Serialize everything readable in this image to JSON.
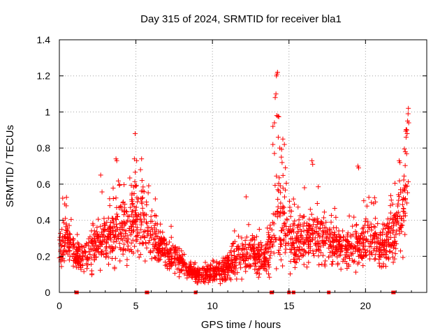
{
  "chart_data": {
    "type": "scatter",
    "title": "Day 315 of 2024, SRMTID for receiver bla1",
    "xlabel": "GPS time / hours",
    "ylabel": "SRMTID / TECUs",
    "xlim": [
      0,
      24
    ],
    "ylim": [
      0,
      1.4
    ],
    "x_ticks": [
      0,
      5,
      10,
      15,
      20
    ],
    "x_tick_labels": [
      "0",
      "5",
      "10",
      "15",
      "20"
    ],
    "y_ticks": [
      0,
      0.2,
      0.4,
      0.6,
      0.8,
      1.0,
      1.2,
      1.4
    ],
    "y_tick_labels": [
      "0",
      "0.2",
      "0.4",
      "0.6",
      "0.8",
      "1",
      "1.2",
      "1.4"
    ],
    "grid": true,
    "marker": "plus",
    "color": "#ff0000",
    "series": [
      {
        "name": "SRMTID",
        "trend": {
          "x": [
            0,
            0.3,
            0.6,
            1.0,
            1.5,
            2.0,
            2.5,
            3.0,
            3.5,
            4.0,
            4.5,
            5.0,
            5.5,
            6.0,
            6.5,
            7.0,
            7.5,
            8.0,
            8.5,
            9.0,
            9.5,
            10.0,
            10.5,
            11.0,
            11.5,
            12.0,
            12.5,
            13.0,
            13.5,
            14.0,
            14.3,
            14.6,
            15.0,
            15.5,
            16.0,
            16.5,
            17.0,
            17.5,
            18.0,
            18.5,
            19.0,
            19.5,
            20.0,
            20.5,
            21.0,
            21.5,
            22.0,
            22.5,
            22.8
          ],
          "y": [
            0.22,
            0.3,
            0.28,
            0.2,
            0.18,
            0.22,
            0.26,
            0.3,
            0.32,
            0.35,
            0.38,
            0.42,
            0.38,
            0.3,
            0.26,
            0.22,
            0.2,
            0.16,
            0.12,
            0.1,
            0.1,
            0.12,
            0.12,
            0.14,
            0.18,
            0.22,
            0.2,
            0.18,
            0.2,
            0.3,
            0.45,
            0.4,
            0.3,
            0.28,
            0.3,
            0.32,
            0.3,
            0.28,
            0.26,
            0.25,
            0.24,
            0.26,
            0.3,
            0.28,
            0.24,
            0.3,
            0.34,
            0.45,
            0.55
          ],
          "spread": [
            0.08,
            0.14,
            0.1,
            0.07,
            0.07,
            0.1,
            0.12,
            0.14,
            0.15,
            0.16,
            0.18,
            0.2,
            0.16,
            0.12,
            0.1,
            0.08,
            0.07,
            0.05,
            0.04,
            0.04,
            0.04,
            0.05,
            0.05,
            0.07,
            0.09,
            0.1,
            0.09,
            0.08,
            0.09,
            0.16,
            0.25,
            0.2,
            0.14,
            0.12,
            0.14,
            0.14,
            0.13,
            0.12,
            0.1,
            0.1,
            0.1,
            0.12,
            0.12,
            0.12,
            0.1,
            0.12,
            0.15,
            0.2,
            0.22
          ],
          "points_per_hour": 90
        },
        "outliers": [
          {
            "x": 0.35,
            "y": 0.49
          },
          {
            "x": 0.45,
            "y": 0.48
          },
          {
            "x": 2.7,
            "y": 0.65
          },
          {
            "x": 3.7,
            "y": 0.74
          },
          {
            "x": 3.75,
            "y": 0.73
          },
          {
            "x": 4.95,
            "y": 0.88
          },
          {
            "x": 4.9,
            "y": 0.74
          },
          {
            "x": 5.05,
            "y": 0.73
          },
          {
            "x": 5.3,
            "y": 0.68
          },
          {
            "x": 5.4,
            "y": 0.62
          },
          {
            "x": 12.2,
            "y": 0.53
          },
          {
            "x": 13.95,
            "y": 0.92
          },
          {
            "x": 14.05,
            "y": 0.94
          },
          {
            "x": 14.1,
            "y": 1.08
          },
          {
            "x": 14.15,
            "y": 1.1
          },
          {
            "x": 14.18,
            "y": 1.2
          },
          {
            "x": 14.22,
            "y": 1.21
          },
          {
            "x": 14.25,
            "y": 1.22
          },
          {
            "x": 14.2,
            "y": 0.98
          },
          {
            "x": 14.3,
            "y": 0.86
          },
          {
            "x": 14.4,
            "y": 0.8
          },
          {
            "x": 14.5,
            "y": 0.75
          },
          {
            "x": 14.55,
            "y": 0.72
          },
          {
            "x": 14.6,
            "y": 0.85
          },
          {
            "x": 14.7,
            "y": 0.82
          },
          {
            "x": 14.05,
            "y": 0.77
          },
          {
            "x": 13.95,
            "y": 0.82
          },
          {
            "x": 16.5,
            "y": 0.73
          },
          {
            "x": 16.55,
            "y": 0.71
          },
          {
            "x": 19.5,
            "y": 0.7
          },
          {
            "x": 19.55,
            "y": 0.69
          },
          {
            "x": 22.2,
            "y": 0.73
          },
          {
            "x": 22.25,
            "y": 0.72
          },
          {
            "x": 22.6,
            "y": 0.78
          },
          {
            "x": 22.7,
            "y": 0.9
          },
          {
            "x": 22.75,
            "y": 0.95
          },
          {
            "x": 22.8,
            "y": 1.02
          },
          {
            "x": 22.78,
            "y": 0.99
          },
          {
            "x": 22.82,
            "y": 0.94
          },
          {
            "x": 22.72,
            "y": 0.88
          },
          {
            "x": 22.65,
            "y": 0.86
          }
        ],
        "zero_values_x": [
          1.1,
          1.15,
          5.7,
          5.75,
          13.85,
          13.9,
          15.0,
          15.3,
          21.8,
          21.85,
          8.9,
          17.6
        ]
      }
    ]
  }
}
